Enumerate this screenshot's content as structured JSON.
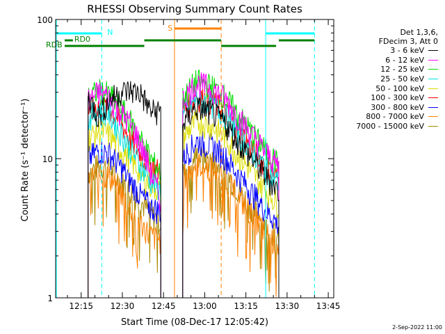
{
  "chart_data": {
    "type": "line",
    "title": "RHESSI Observing Summary Count Rates",
    "xlabel": "Start Time (08-Dec-17 12:05:42)",
    "ylabel": "Count Rate (s⁻¹ detector⁻¹)",
    "x_ticks": [
      "12:15",
      "12:30",
      "12:45",
      "13:00",
      "13:15",
      "13:30",
      "13:45"
    ],
    "x_tick_minutes": [
      15,
      30,
      45,
      60,
      75,
      90,
      105
    ],
    "xlim_minutes": [
      5.7,
      107
    ],
    "y_scale": "log",
    "ylim": [
      1,
      100
    ],
    "y_ticks": [
      "1",
      "10",
      "100"
    ],
    "y_tick_values": [
      1,
      10,
      100
    ],
    "legend_header": [
      "Det 1,3,6,",
      "FDecim 3, Att 0"
    ],
    "legend_position": "right",
    "series": [
      {
        "name": "3 - 6 keV",
        "color": "#000000",
        "values": [
          28,
          20,
          26,
          30,
          31,
          30,
          22,
          22
        ]
      },
      {
        "name": "6 - 12 keV",
        "color": "#ff00ff",
        "values": [
          26,
          30,
          28,
          22,
          18,
          13,
          8,
          5
        ]
      },
      {
        "name": "12 - 25 keV",
        "color": "#00dd00",
        "values": [
          27,
          31,
          29,
          24,
          19,
          14,
          10,
          8
        ]
      },
      {
        "name": "25 - 50 keV",
        "color": "#00e0e0",
        "values": [
          19,
          23,
          21,
          16,
          12,
          9,
          7,
          6
        ]
      },
      {
        "name": "50 - 100 keV",
        "color": "#dddd00",
        "values": [
          14,
          16,
          15,
          12,
          10,
          8,
          6.5,
          6
        ]
      },
      {
        "name": "100 - 300 keV",
        "color": "#ff0000",
        "values": [
          22,
          24,
          23,
          19,
          14,
          11,
          9,
          8
        ]
      },
      {
        "name": "300 - 800 keV",
        "color": "#0000ff",
        "values": [
          10,
          11.5,
          11,
          9,
          7,
          5.5,
          4.5,
          4.2
        ]
      },
      {
        "name": "800 - 7000 keV",
        "color": "#ff8000",
        "values": [
          7,
          8,
          7.5,
          6,
          4.5,
          3.5,
          2.8,
          2.6
        ]
      },
      {
        "name": "7000 - 15000 keV",
        "color": "#aa8800",
        "values": [
          8,
          9,
          8.5,
          7,
          6,
          5,
          4,
          3.5
        ]
      }
    ],
    "orbit_segments": [
      {
        "start_min": 52,
        "end_min": 87,
        "profile": [
          21,
          28,
          26,
          22,
          16,
          12,
          9,
          7
        ]
      }
    ],
    "flags": [
      {
        "label": "N",
        "color": "#00ffff"
      },
      {
        "label": "S",
        "color": "#ff8000"
      },
      {
        "label": "RD0",
        "color": "#008000"
      },
      {
        "label": "RDB",
        "color": "#008000"
      }
    ],
    "timestamp": "2-Sep-2022 11:00"
  }
}
